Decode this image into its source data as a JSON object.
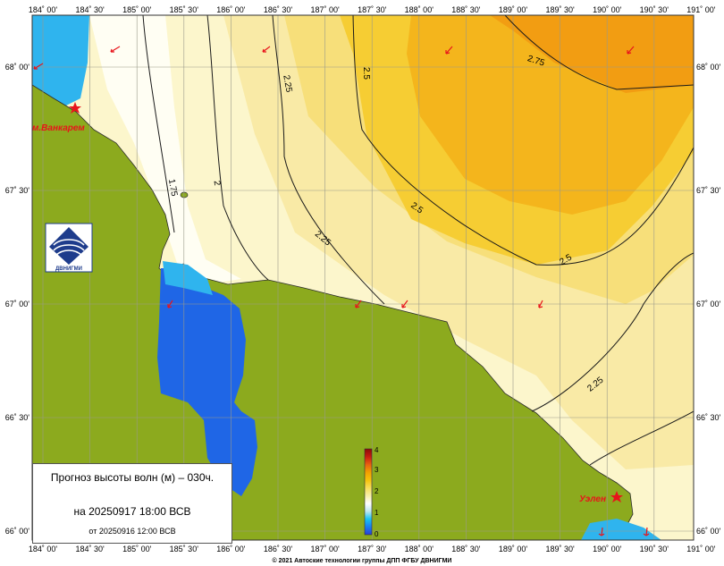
{
  "map": {
    "lon_ticks_top": [
      "184˚ 00'",
      "184˚ 30'",
      "185˚ 00'",
      "185˚ 30'",
      "186˚ 00'",
      "186˚ 30'",
      "187˚ 00'",
      "187˚ 30'",
      "188˚ 00'",
      "188˚ 30'",
      "189˚ 00'",
      "189˚ 30'",
      "190˚ 00'",
      "190˚ 30'",
      "191˚ 00'"
    ],
    "lon_ticks_bottom": [
      "184˚ 00'",
      "184˚ 30'",
      "185˚ 00'",
      "185˚ 30'",
      "186˚ 00'",
      "186˚ 30'",
      "187˚ 00'",
      "187˚ 30'",
      "188˚ 00'",
      "188˚ 30'",
      "189˚ 00'",
      "189˚ 30'",
      "190˚ 00'",
      "190˚ 30'",
      "191˚ 00'"
    ],
    "lat_ticks": [
      "68˚ 00'",
      "67˚ 30'",
      "67˚ 00'",
      "66˚ 30'",
      "66˚ 00'"
    ],
    "contour_labels": [
      "2.75",
      "2.5",
      "2.25",
      "2",
      "1.75",
      "2.5",
      "2.25",
      "2.5",
      "2.25"
    ],
    "places": [
      "м.Ванкарем",
      "Уэлен"
    ],
    "colorbar": {
      "ticks": [
        "0",
        "1",
        "2",
        "3",
        "4"
      ],
      "colors": [
        "#2a3fd6",
        "#1a7ef0",
        "#19c3f2",
        "#bfe8f0",
        "#ffffff",
        "#f8f0a8",
        "#f8de5a",
        "#f6c20a",
        "#f2a000",
        "#e86010",
        "#c81a10",
        "#8a0a08"
      ]
    },
    "colors": {
      "land": "#8caa1e",
      "water_deep": "#1f66e6",
      "water_light": "#2fb4ee",
      "sea_pale": "#fcf6cc",
      "sea_mid": "#f8e69a",
      "sea_yellow": "#f6d43a",
      "sea_orange": "#f5b21c",
      "sea_peak": "#f29a10",
      "marker": "#e8141b"
    },
    "credit": "© 2021 Автоские технологии группы ДПП ФГБУ ДВНИГМИ",
    "logo_text": "ДВНИГМИ"
  },
  "info": {
    "title": "Прогноз высоты волн (м) – 030ч.",
    "valid": "на 20250917 18:00 ВСВ",
    "base": "от 20250916 12:00 ВСВ"
  }
}
